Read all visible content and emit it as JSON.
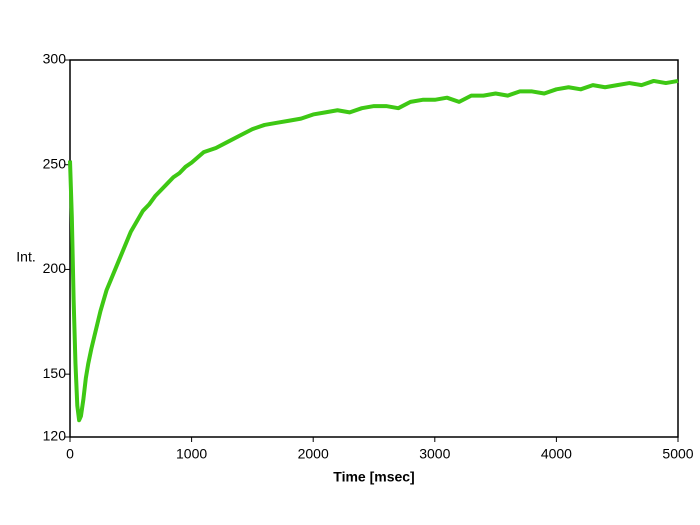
{
  "chart_data": {
    "type": "line",
    "xlabel": "Time [msec]",
    "ylabel": "Int.",
    "x": [
      0,
      15,
      30,
      45,
      60,
      75,
      90,
      110,
      130,
      150,
      175,
      200,
      250,
      300,
      350,
      400,
      450,
      500,
      550,
      600,
      650,
      700,
      750,
      800,
      850,
      900,
      950,
      1000,
      1100,
      1200,
      1300,
      1400,
      1500,
      1600,
      1700,
      1800,
      1900,
      2000,
      2100,
      2200,
      2300,
      2400,
      2500,
      2600,
      2700,
      2800,
      2900,
      3000,
      3100,
      3200,
      3300,
      3400,
      3500,
      3600,
      3700,
      3800,
      3900,
      4000,
      4100,
      4200,
      4300,
      4400,
      4500,
      4600,
      4700,
      4800,
      4900,
      5000
    ],
    "series": [
      {
        "color": "#3ec814",
        "values": [
          252,
          225,
          185,
          155,
          135,
          128,
          130,
          138,
          148,
          155,
          162,
          168,
          180,
          190,
          197,
          204,
          211,
          218,
          223,
          228,
          231,
          235,
          238,
          241,
          244,
          246,
          249,
          251,
          256,
          258,
          261,
          264,
          267,
          269,
          270,
          271,
          272,
          274,
          275,
          276,
          275,
          277,
          278,
          278,
          277,
          280,
          281,
          281,
          282,
          280,
          283,
          283,
          284,
          283,
          285,
          285,
          284,
          286,
          287,
          286,
          288,
          287,
          288,
          289,
          288,
          290,
          289,
          290
        ]
      }
    ],
    "xlim": [
      0,
      5000
    ],
    "xticks": [
      0,
      1000,
      2000,
      3000,
      4000,
      5000
    ],
    "ylim": [
      120,
      300
    ],
    "yticks": [
      120,
      150,
      200,
      250,
      300
    ]
  }
}
